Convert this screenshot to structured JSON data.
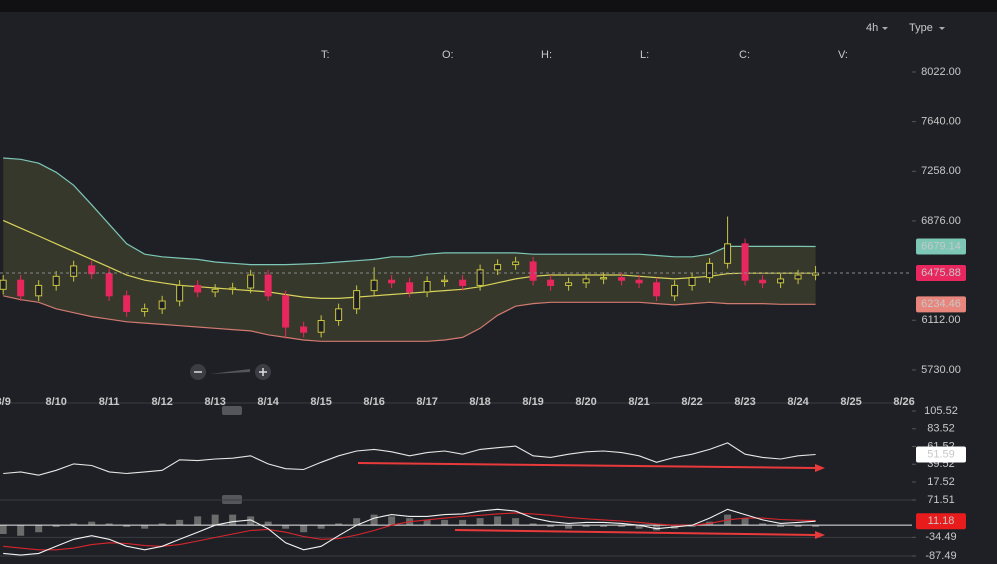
{
  "toolbar": {
    "interval": "4h",
    "type": "Type"
  },
  "legend": [
    "T:",
    "O:",
    "H:",
    "L:",
    "C:",
    "V:"
  ],
  "chart_data": [
    {
      "type": "candlestick",
      "x": [
        9,
        9.33,
        9.67,
        10,
        10.33,
        10.67,
        11,
        11.33,
        11.67,
        12,
        12.33,
        12.67,
        13,
        13.33,
        13.67,
        14,
        14.33,
        14.67,
        15,
        15.33,
        15.67,
        16,
        16.33,
        16.67,
        17,
        17.33,
        17.67,
        18,
        18.33,
        18.67,
        19,
        19.33,
        19.67,
        20,
        20.33,
        20.67,
        21,
        21.33,
        21.67,
        22,
        22.33,
        22.67,
        23,
        23.33,
        23.67,
        24,
        24.33
      ],
      "open": [
        6350,
        6420,
        6300,
        6380,
        6450,
        6530,
        6470,
        6300,
        6180,
        6200,
        6260,
        6380,
        6330,
        6350,
        6360,
        6460,
        6300,
        6060,
        6020,
        6110,
        6200,
        6340,
        6420,
        6400,
        6330,
        6410,
        6420,
        6380,
        6500,
        6540,
        6560,
        6420,
        6380,
        6400,
        6430,
        6440,
        6420,
        6400,
        6300,
        6380,
        6440,
        6550,
        6700,
        6420,
        6400,
        6430,
        6460
      ],
      "high": [
        6460,
        6460,
        6420,
        6490,
        6570,
        6570,
        6510,
        6340,
        6240,
        6300,
        6420,
        6420,
        6390,
        6400,
        6500,
        6500,
        6340,
        6100,
        6150,
        6240,
        6380,
        6520,
        6460,
        6440,
        6450,
        6460,
        6460,
        6540,
        6580,
        6600,
        6600,
        6460,
        6440,
        6470,
        6480,
        6480,
        6460,
        6440,
        6420,
        6480,
        6590,
        6910,
        6740,
        6460,
        6470,
        6500,
        6530
      ],
      "low": [
        6310,
        6260,
        6260,
        6340,
        6410,
        6430,
        6260,
        6140,
        6140,
        6160,
        6220,
        6290,
        6290,
        6310,
        6320,
        6260,
        5970,
        5980,
        5980,
        6070,
        6160,
        6300,
        6360,
        6290,
        6290,
        6370,
        6340,
        6340,
        6460,
        6500,
        6380,
        6340,
        6340,
        6360,
        6390,
        6380,
        6360,
        6260,
        6260,
        6340,
        6400,
        6510,
        6380,
        6360,
        6360,
        6390,
        6420
      ],
      "close": [
        6420,
        6300,
        6380,
        6450,
        6530,
        6470,
        6300,
        6180,
        6200,
        6260,
        6380,
        6330,
        6350,
        6360,
        6460,
        6300,
        6060,
        6020,
        6110,
        6200,
        6340,
        6420,
        6400,
        6330,
        6410,
        6420,
        6380,
        6500,
        6540,
        6560,
        6420,
        6380,
        6400,
        6430,
        6440,
        6420,
        6400,
        6300,
        6380,
        6440,
        6550,
        6700,
        6420,
        6400,
        6430,
        6460,
        6475.88
      ],
      "up_color": "#c9c63f",
      "down_color": "#e8275f",
      "bands": {
        "upper": [
          7360,
          7350,
          7320,
          7250,
          7150,
          7000,
          6850,
          6700,
          6620,
          6600,
          6590,
          6580,
          6560,
          6550,
          6540,
          6540,
          6540,
          6545,
          6550,
          6560,
          6570,
          6580,
          6600,
          6600,
          6620,
          6630,
          6630,
          6630,
          6630,
          6630,
          6620,
          6620,
          6620,
          6620,
          6620,
          6620,
          6620,
          6610,
          6600,
          6600,
          6620,
          6680,
          6680,
          6680,
          6680,
          6680,
          6679.14
        ],
        "middle": [
          6880,
          6820,
          6760,
          6700,
          6640,
          6580,
          6520,
          6460,
          6420,
          6400,
          6380,
          6370,
          6360,
          6350,
          6340,
          6330,
          6310,
          6290,
          6280,
          6280,
          6290,
          6300,
          6310,
          6320,
          6330,
          6340,
          6350,
          6370,
          6400,
          6430,
          6450,
          6460,
          6460,
          6460,
          6460,
          6460,
          6450,
          6440,
          6430,
          6440,
          6450,
          6470,
          6475,
          6475,
          6475,
          6475,
          6475
        ],
        "lower": [
          6300,
          6270,
          6250,
          6200,
          6170,
          6140,
          6120,
          6100,
          6090,
          6080,
          6070,
          6060,
          6050,
          6040,
          6030,
          6000,
          5980,
          5960,
          5950,
          5950,
          5950,
          5950,
          5950,
          5950,
          5950,
          5960,
          5980,
          6050,
          6150,
          6220,
          6240,
          6250,
          6250,
          6250,
          6250,
          6250,
          6250,
          6240,
          6230,
          6240,
          6250,
          6240,
          6240,
          6240,
          6235,
          6235,
          6234.46
        ],
        "upper_color": "#7cc7b6",
        "middle_color": "#d8d35a",
        "lower_color": "#d27a70"
      },
      "xlim": [
        8.94,
        26.15
      ],
      "xticks": [
        {
          "value": 9,
          "label": "8/9"
        },
        {
          "value": 10,
          "label": "8/10"
        },
        {
          "value": 11,
          "label": "8/11"
        },
        {
          "value": 12,
          "label": "8/12"
        },
        {
          "value": 13,
          "label": "8/13"
        },
        {
          "value": 14,
          "label": "8/14"
        },
        {
          "value": 15,
          "label": "8/15"
        },
        {
          "value": 16,
          "label": "8/16"
        },
        {
          "value": 17,
          "label": "8/17"
        },
        {
          "value": 18,
          "label": "8/18"
        },
        {
          "value": 19,
          "label": "8/19"
        },
        {
          "value": 20,
          "label": "8/20"
        },
        {
          "value": 21,
          "label": "8/21"
        },
        {
          "value": 22,
          "label": "8/22"
        },
        {
          "value": 23,
          "label": "8/23"
        },
        {
          "value": 24,
          "label": "8/24"
        },
        {
          "value": 25,
          "label": "8/25"
        },
        {
          "value": 26,
          "label": "8/26"
        }
      ],
      "ylim": [
        5537,
        8268
      ],
      "yticks": [
        {
          "value": 5730,
          "label": "5730.00"
        },
        {
          "value": 6112,
          "label": "6112.00"
        },
        {
          "value": 6876,
          "label": "6876.00"
        },
        {
          "value": 7258,
          "label": "7258.00"
        },
        {
          "value": 7640,
          "label": "7640.00"
        },
        {
          "value": 8022,
          "label": "8022.00"
        }
      ]
    },
    {
      "type": "line",
      "values": [
        28,
        30,
        26,
        32,
        40,
        38,
        30,
        28,
        30,
        32,
        45,
        44,
        46,
        47,
        50,
        40,
        34,
        33,
        42,
        50,
        56,
        58,
        55,
        50,
        54,
        56,
        52,
        58,
        60,
        62,
        50,
        48,
        52,
        55,
        56,
        54,
        50,
        42,
        48,
        52,
        58,
        66,
        52,
        48,
        46,
        50,
        51.59
      ],
      "color": "#e6e6e6",
      "ylim": [
        1.4,
        113
      ],
      "yticks": [
        17.52,
        39.52,
        61.52,
        83.52,
        105.52
      ]
    },
    {
      "type": "macd",
      "histogram": [
        -25,
        -30,
        -20,
        -5,
        5,
        10,
        5,
        -5,
        -10,
        5,
        15,
        25,
        30,
        30,
        25,
        10,
        -10,
        -20,
        -10,
        5,
        20,
        30,
        25,
        20,
        15,
        15,
        15,
        20,
        25,
        20,
        5,
        -5,
        -10,
        -5,
        -5,
        -5,
        -10,
        -15,
        -10,
        -5,
        10,
        30,
        20,
        5,
        -5,
        -5,
        -5
      ],
      "macd": [
        -80,
        -85,
        -80,
        -60,
        -40,
        -30,
        -40,
        -60,
        -70,
        -60,
        -40,
        -20,
        0,
        10,
        15,
        -10,
        -50,
        -70,
        -60,
        -30,
        0,
        20,
        30,
        25,
        25,
        30,
        32,
        40,
        45,
        40,
        20,
        10,
        5,
        8,
        8,
        5,
        0,
        -10,
        -5,
        0,
        20,
        45,
        30,
        15,
        5,
        8,
        11.18
      ],
      "signal": [
        -60,
        -65,
        -70,
        -70,
        -65,
        -55,
        -50,
        -52,
        -58,
        -60,
        -55,
        -45,
        -35,
        -25,
        -15,
        -12,
        -20,
        -32,
        -40,
        -38,
        -28,
        -15,
        0,
        10,
        15,
        20,
        25,
        28,
        32,
        35,
        32,
        28,
        22,
        18,
        15,
        12,
        8,
        3,
        0,
        0,
        5,
        15,
        20,
        20,
        16,
        14,
        13
      ],
      "histogram_color": "#6b6b6b",
      "macd_color": "#f2f2f2",
      "signal_color": "#d8262c",
      "ylim": [
        -110.2,
        80
      ],
      "yticks": [
        -87.49,
        -34.49,
        71.51
      ]
    }
  ]
}
